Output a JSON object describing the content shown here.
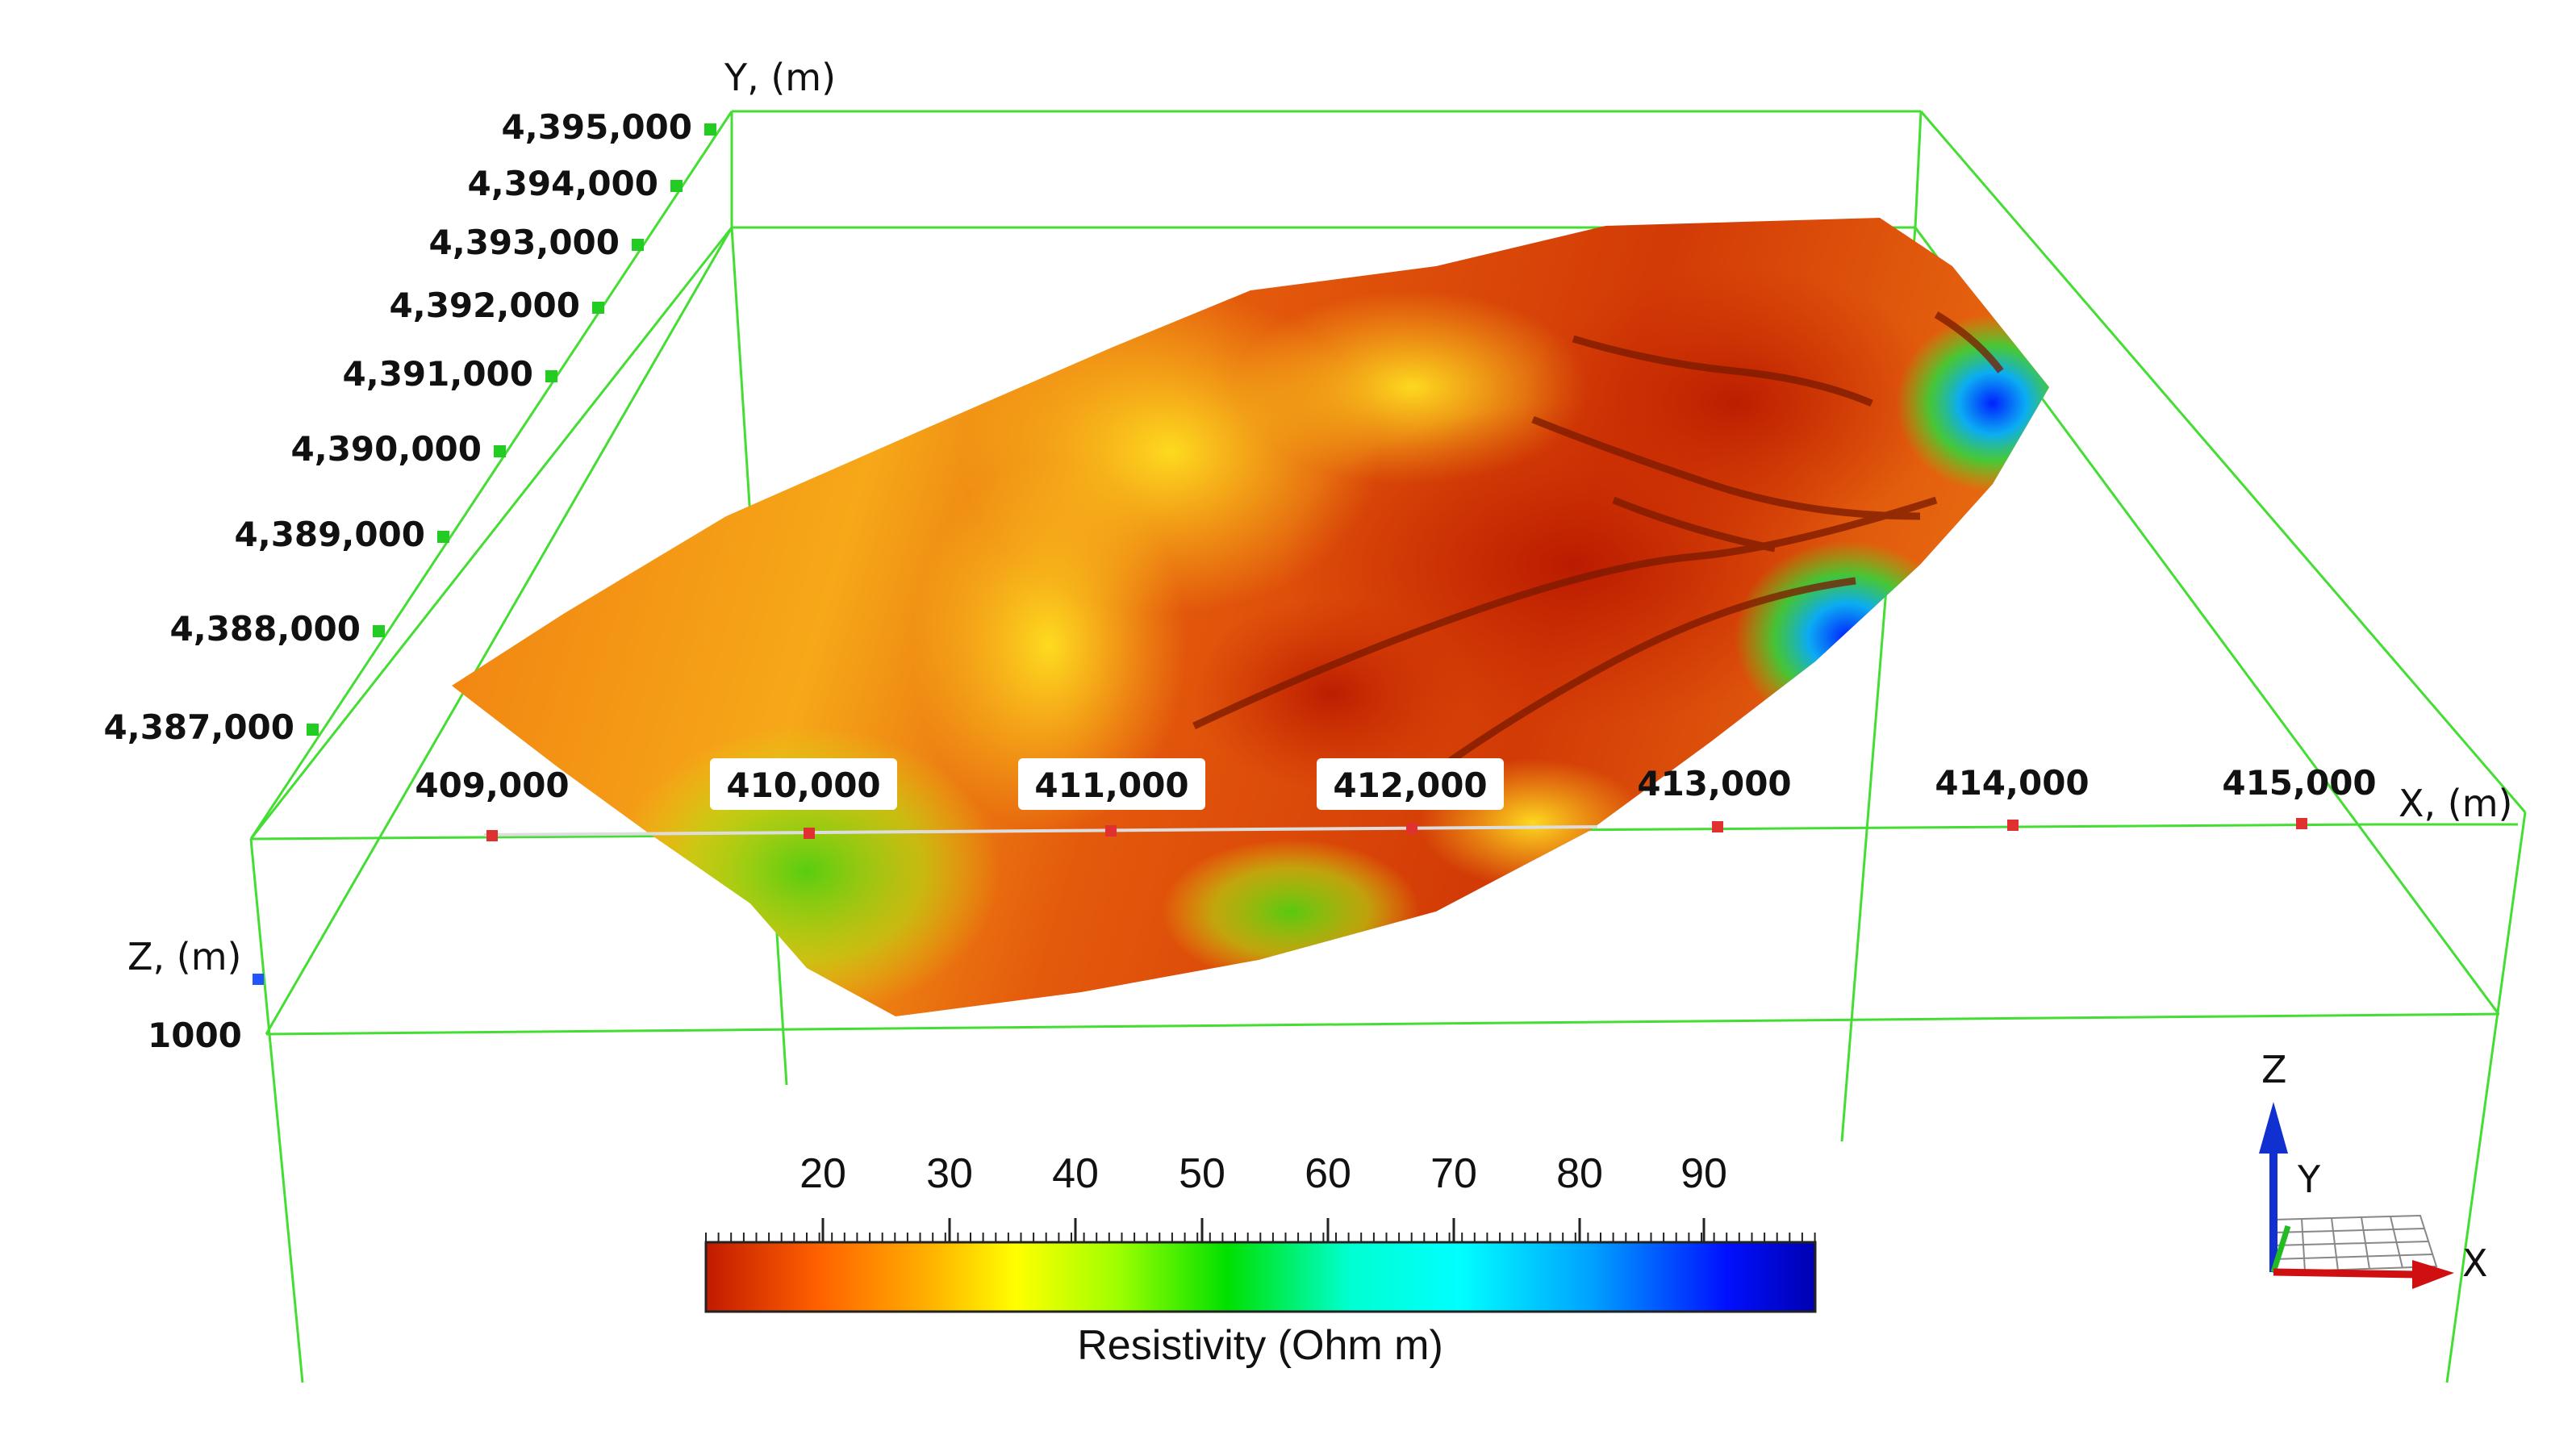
{
  "chart_data": {
    "type": "heatmap",
    "axes": {
      "x": {
        "title": "X, (m)",
        "ticks": [
          "409,000",
          "410,000",
          "411,000",
          "412,000",
          "413,000",
          "414,000",
          "415,000"
        ]
      },
      "y": {
        "title": "Y, (m)",
        "ticks": [
          "4,387,000",
          "4,388,000",
          "4,389,000",
          "4,390,000",
          "4,391,000",
          "4,392,000",
          "4,393,000",
          "4,394,000",
          "4,395,000"
        ]
      },
      "z": {
        "title": "Z, (m)",
        "ticks": [
          "1000"
        ]
      }
    },
    "colorbar": {
      "title": "Resistivity (Ohm m)",
      "ticks": [
        "20",
        "30",
        "40",
        "50",
        "60",
        "70",
        "80",
        "90"
      ],
      "range": [
        11,
        99
      ],
      "colors": [
        "#c01a00",
        "#ff6000",
        "#ffb000",
        "#ffff00",
        "#a0ff00",
        "#00e000",
        "#00ffd0",
        "#00ffff",
        "#00a0ff",
        "#0010ff",
        "#0000b0"
      ]
    },
    "surface": {
      "dominant_range": [
        15,
        35
      ],
      "low_zone": "northeast, ~10-20 Ohm m",
      "high_zone": "east edge, ~55-90 Ohm m"
    },
    "triad": {
      "z_label": "Z",
      "y_label": "Y",
      "x_label": "X"
    },
    "grid": true
  }
}
